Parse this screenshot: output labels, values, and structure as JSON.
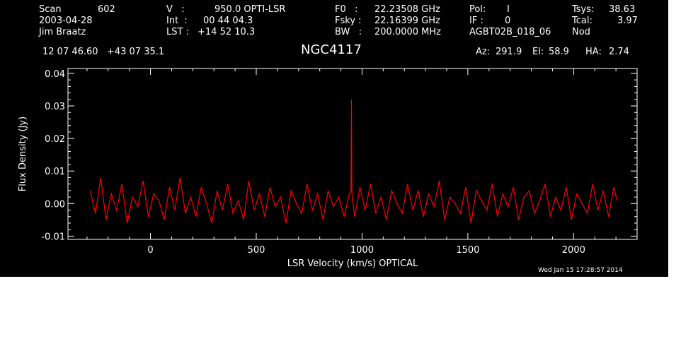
{
  "header": {
    "scan_label": "Scan",
    "scan_value": "602",
    "date": "2003-04-28",
    "observer": "Jim Braatz",
    "v_label": "V   :",
    "v_value": "950.0 OPTI-LSR",
    "int_label": "Int  :",
    "int_value": "00 44 04.3",
    "lst_label": "LST :",
    "lst_value": "+14 52 10.3",
    "f0_label": "F0   :",
    "f0_value": "22.23508 GHz",
    "fsky_label": "Fsky :",
    "fsky_value": "22.16399 GHz",
    "bw_label": "BW   :",
    "bw_value": "200.0000 MHz",
    "pol_label": "Pol:",
    "pol_value": "I",
    "if_label": "IF :",
    "if_value": "0",
    "project": "AGBT02B_018_06",
    "tsys_label": "Tsys:",
    "tsys_value": "38.63",
    "tcal_label": "Tcal:",
    "tcal_value": "3.97",
    "mode": "Nod",
    "coordinates": "12 07 46.60   +43 07 35.1",
    "source": "NGC4117",
    "az_label": "Az:",
    "az_value": "291.9",
    "el_label": "El:",
    "el_value": "58.9",
    "ha_label": "HA:",
    "ha_value": "2.74"
  },
  "timestamp": "Wed Jan 15 17:28:57 2014",
  "colors": {
    "background": "#000000",
    "axes": "#ffffff",
    "series": "#ff0000",
    "page": "#ffffff"
  },
  "chart_data": {
    "type": "line",
    "title": "",
    "xlabel": "LSR Velocity (km/s) OPTICAL",
    "ylabel": "Flux Density (Jy)",
    "xlim": [
      -390,
      2300
    ],
    "ylim": [
      -0.011,
      0.0415
    ],
    "x_ticks": [
      0,
      500,
      1000,
      1500,
      2000
    ],
    "x_tick_labels": [
      "0",
      "500",
      "1000",
      "1500",
      "2000"
    ],
    "y_ticks": [
      -0.01,
      0.0,
      0.01,
      0.02,
      0.03,
      0.04
    ],
    "y_tick_labels": [
      "-0.01",
      "0.00",
      "0.01",
      "0.02",
      "0.03",
      "0.04"
    ],
    "grid": false,
    "series": [
      {
        "x": [
          -285,
          -260,
          -235,
          -210,
          -185,
          -160,
          -135,
          -110,
          -85,
          -60,
          -35,
          -10,
          15,
          40,
          65,
          90,
          115,
          140,
          165,
          190,
          215,
          240,
          265,
          290,
          315,
          340,
          365,
          390,
          415,
          440,
          465,
          490,
          515,
          540,
          565,
          590,
          615,
          640,
          665,
          690,
          715,
          740,
          765,
          790,
          815,
          840,
          865,
          890,
          915,
          940,
          948,
          950,
          952,
          965,
          990,
          1015,
          1040,
          1065,
          1090,
          1115,
          1140,
          1165,
          1190,
          1215,
          1240,
          1265,
          1290,
          1315,
          1340,
          1365,
          1390,
          1415,
          1440,
          1465,
          1490,
          1515,
          1540,
          1565,
          1590,
          1615,
          1640,
          1665,
          1690,
          1715,
          1740,
          1765,
          1790,
          1815,
          1840,
          1865,
          1890,
          1915,
          1940,
          1965,
          1990,
          2015,
          2040,
          2065,
          2090,
          2115,
          2140,
          2165,
          2190,
          2205
        ],
        "y": [
          0.004,
          -0.003,
          0.008,
          -0.005,
          0.003,
          -0.002,
          0.006,
          -0.006,
          0.002,
          -0.001,
          0.007,
          -0.004,
          0.003,
          0.001,
          -0.005,
          0.005,
          -0.002,
          0.008,
          -0.003,
          0.002,
          -0.004,
          0.005,
          0.0,
          -0.006,
          0.004,
          -0.002,
          0.006,
          -0.003,
          0.001,
          -0.005,
          0.007,
          -0.002,
          0.003,
          -0.004,
          0.005,
          -0.001,
          0.002,
          -0.006,
          0.004,
          0.0,
          -0.003,
          0.006,
          -0.002,
          0.003,
          -0.005,
          0.004,
          -0.001,
          0.002,
          -0.004,
          0.003,
          0.004,
          0.032,
          0.003,
          -0.004,
          0.005,
          -0.002,
          0.006,
          -0.003,
          0.002,
          -0.005,
          0.004,
          0.0,
          -0.003,
          0.006,
          -0.002,
          0.004,
          -0.004,
          0.003,
          -0.001,
          0.007,
          -0.005,
          0.002,
          0.0,
          -0.003,
          0.005,
          -0.006,
          0.004,
          0.001,
          -0.002,
          0.006,
          -0.004,
          0.003,
          -0.001,
          0.005,
          -0.005,
          0.002,
          0.004,
          -0.003,
          0.001,
          0.006,
          -0.004,
          0.002,
          -0.002,
          0.005,
          -0.005,
          0.003,
          0.0,
          -0.003,
          0.006,
          -0.002,
          0.004,
          -0.004,
          0.005,
          0.001
        ]
      }
    ]
  }
}
